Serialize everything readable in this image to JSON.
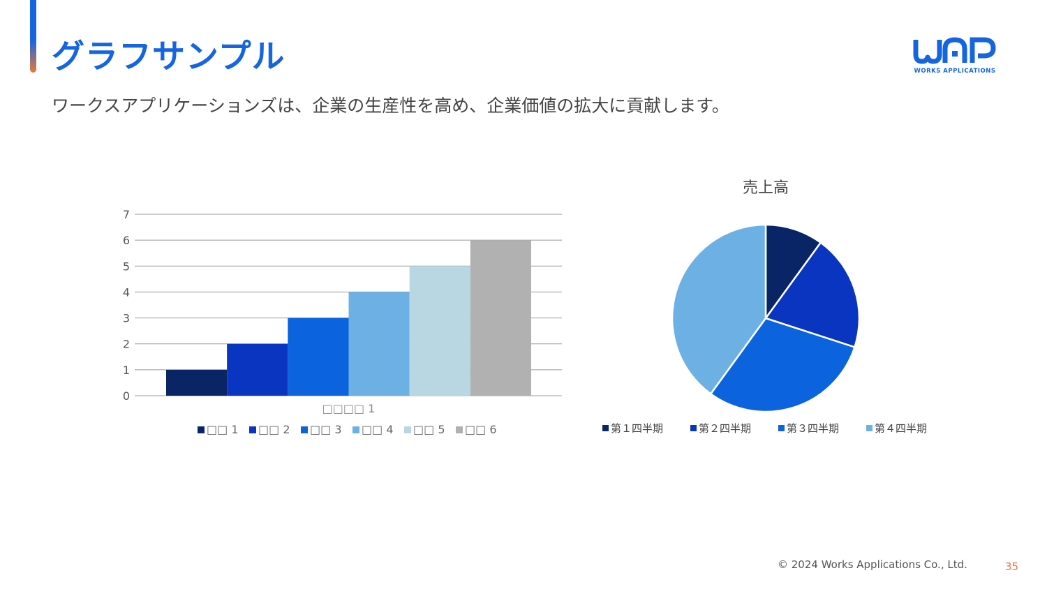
{
  "slide": {
    "title": "グラフサンプル",
    "subtitle": "ワークスアプリケーションズは、企業の生産性を高め、企業価値の拡大に貢献します。",
    "logo_text": "WORKS APPLICATIONS",
    "copyright": "© 2024 Works Applications Co., Ltd.",
    "page_number": "35"
  },
  "colors": {
    "accent_blue": "#1565e0",
    "accent_orange": "#e8793a"
  },
  "chart_data": [
    {
      "type": "bar",
      "categories": [
        "□□□□ 1"
      ],
      "series": [
        {
          "name": "□□ 1",
          "values": [
            1
          ],
          "color": "#0a2566"
        },
        {
          "name": "□□ 2",
          "values": [
            2
          ],
          "color": "#0a35c0"
        },
        {
          "name": "□□ 3",
          "values": [
            3
          ],
          "color": "#0b63dd"
        },
        {
          "name": "□□ 4",
          "values": [
            4
          ],
          "color": "#6db1e4"
        },
        {
          "name": "□□ 5",
          "values": [
            5
          ],
          "color": "#b9d7e2"
        },
        {
          "name": "□□ 6",
          "values": [
            6
          ],
          "color": "#b1b1b1"
        }
      ],
      "ylim": [
        0,
        7
      ],
      "yticks": [
        "0",
        "1",
        "2",
        "3",
        "4",
        "5",
        "6",
        "7"
      ],
      "grid": true,
      "legend": "bottom"
    },
    {
      "type": "pie",
      "title": "売上高",
      "labels": [
        "第１四半期",
        "第２四半期",
        "第３四半期",
        "第４四半期"
      ],
      "values": [
        1,
        2,
        3,
        4
      ],
      "colors": [
        "#0a2566",
        "#0a35c0",
        "#0b63dd",
        "#6db1e4"
      ],
      "legend": "bottom"
    }
  ]
}
